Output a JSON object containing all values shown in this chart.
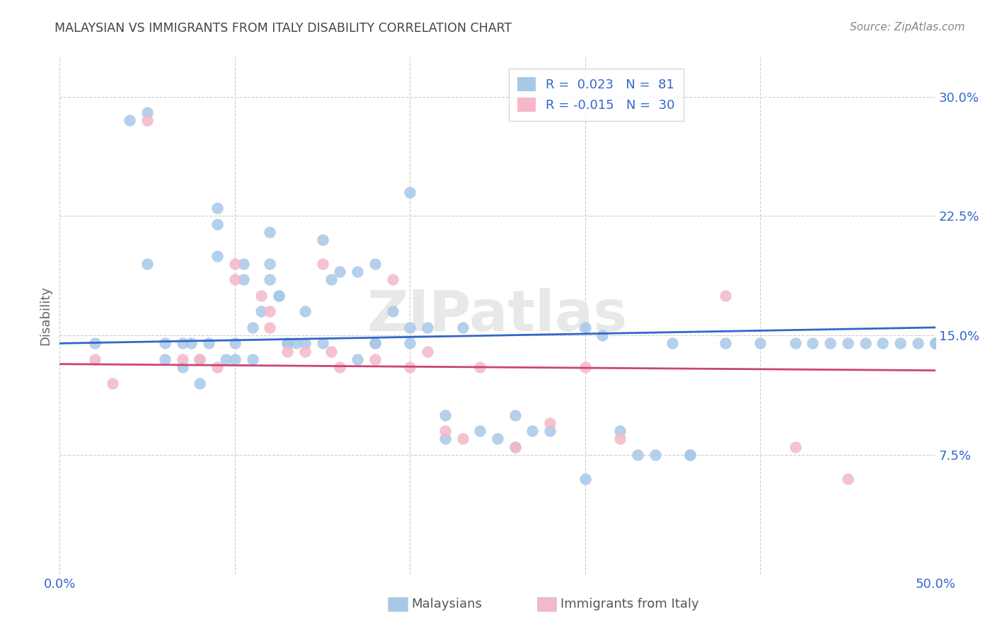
{
  "title": "MALAYSIAN VS IMMIGRANTS FROM ITALY DISABILITY CORRELATION CHART",
  "source": "Source: ZipAtlas.com",
  "ylabel": "Disability",
  "xlim": [
    0.0,
    0.5
  ],
  "ylim": [
    0.0,
    0.325
  ],
  "xticks": [
    0.0,
    0.1,
    0.2,
    0.3,
    0.4,
    0.5
  ],
  "xticklabels": [
    "0.0%",
    "",
    "",
    "",
    "",
    "50.0%"
  ],
  "yticks": [
    0.075,
    0.15,
    0.225,
    0.3
  ],
  "yticklabels": [
    "7.5%",
    "15.0%",
    "22.5%",
    "30.0%"
  ],
  "legend_R1": "R =  0.023",
  "legend_N1": "N =  81",
  "legend_R2": "R = -0.015",
  "legend_N2": "N =  30",
  "blue_color": "#a8c8e8",
  "pink_color": "#f4b8c8",
  "line_blue": "#3366cc",
  "line_pink": "#cc4477",
  "legend_text_color": "#3366cc",
  "axis_text_color": "#3366cc",
  "title_color": "#444444",
  "source_color": "#888888",
  "watermark": "ZIPatlas",
  "watermark_color": "#e8e8e8",
  "blue_line_start_y": 0.145,
  "blue_line_end_y": 0.155,
  "pink_line_start_y": 0.132,
  "pink_line_end_y": 0.128,
  "blue_scatter_x": [
    0.02,
    0.04,
    0.05,
    0.05,
    0.06,
    0.06,
    0.07,
    0.07,
    0.075,
    0.08,
    0.08,
    0.085,
    0.09,
    0.09,
    0.09,
    0.095,
    0.1,
    0.1,
    0.105,
    0.105,
    0.11,
    0.11,
    0.115,
    0.12,
    0.12,
    0.12,
    0.125,
    0.125,
    0.13,
    0.13,
    0.135,
    0.14,
    0.14,
    0.15,
    0.15,
    0.155,
    0.16,
    0.17,
    0.17,
    0.18,
    0.18,
    0.18,
    0.19,
    0.2,
    0.2,
    0.2,
    0.21,
    0.22,
    0.22,
    0.23,
    0.24,
    0.25,
    0.26,
    0.26,
    0.27,
    0.28,
    0.3,
    0.3,
    0.31,
    0.32,
    0.33,
    0.34,
    0.35,
    0.36,
    0.36,
    0.38,
    0.4,
    0.42,
    0.43,
    0.44,
    0.45,
    0.46,
    0.47,
    0.48,
    0.49,
    0.5,
    0.5,
    0.5,
    0.5,
    0.5,
    0.5
  ],
  "blue_scatter_y": [
    0.145,
    0.285,
    0.195,
    0.29,
    0.145,
    0.135,
    0.145,
    0.13,
    0.145,
    0.135,
    0.12,
    0.145,
    0.23,
    0.22,
    0.2,
    0.135,
    0.145,
    0.135,
    0.195,
    0.185,
    0.155,
    0.135,
    0.165,
    0.215,
    0.195,
    0.185,
    0.175,
    0.175,
    0.145,
    0.145,
    0.145,
    0.165,
    0.145,
    0.145,
    0.21,
    0.185,
    0.19,
    0.135,
    0.19,
    0.145,
    0.195,
    0.145,
    0.165,
    0.155,
    0.145,
    0.24,
    0.155,
    0.1,
    0.085,
    0.155,
    0.09,
    0.085,
    0.08,
    0.1,
    0.09,
    0.09,
    0.06,
    0.155,
    0.15,
    0.09,
    0.075,
    0.075,
    0.145,
    0.075,
    0.075,
    0.145,
    0.145,
    0.145,
    0.145,
    0.145,
    0.145,
    0.145,
    0.145,
    0.145,
    0.145,
    0.145,
    0.145,
    0.145,
    0.145,
    0.145,
    0.145
  ],
  "pink_scatter_x": [
    0.02,
    0.03,
    0.05,
    0.07,
    0.08,
    0.09,
    0.1,
    0.1,
    0.115,
    0.12,
    0.12,
    0.13,
    0.14,
    0.15,
    0.155,
    0.16,
    0.18,
    0.19,
    0.2,
    0.21,
    0.22,
    0.23,
    0.24,
    0.26,
    0.28,
    0.3,
    0.32,
    0.38,
    0.42,
    0.45
  ],
  "pink_scatter_y": [
    0.135,
    0.12,
    0.285,
    0.135,
    0.135,
    0.13,
    0.195,
    0.185,
    0.175,
    0.165,
    0.155,
    0.14,
    0.14,
    0.195,
    0.14,
    0.13,
    0.135,
    0.185,
    0.13,
    0.14,
    0.09,
    0.085,
    0.13,
    0.08,
    0.095,
    0.13,
    0.085,
    0.175,
    0.08,
    0.06
  ]
}
